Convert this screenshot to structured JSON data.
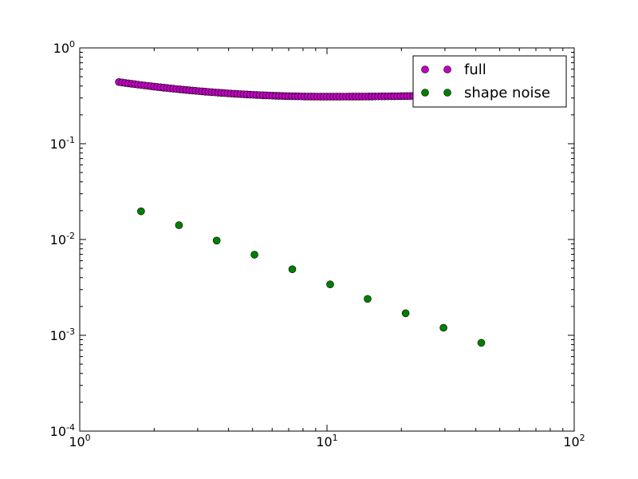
{
  "chart_data": {
    "type": "scatter",
    "title": "",
    "xlabel": "",
    "ylabel": "",
    "xscale": "log",
    "yscale": "log",
    "xlim": [
      1,
      100
    ],
    "ylim": [
      0.0001,
      1
    ],
    "x_ticks": [
      {
        "value": 1,
        "base": "10",
        "exp": "0"
      },
      {
        "value": 10,
        "base": "10",
        "exp": "1"
      },
      {
        "value": 100,
        "base": "10",
        "exp": "2"
      }
    ],
    "y_ticks": [
      {
        "value": 1,
        "base": "10",
        "exp": "0"
      },
      {
        "value": 0.1,
        "base": "10",
        "exp": "-1"
      },
      {
        "value": 0.01,
        "base": "10",
        "exp": "-2"
      },
      {
        "value": 0.001,
        "base": "10",
        "exp": "-3"
      },
      {
        "value": 0.0001,
        "base": "10",
        "exp": "-4"
      }
    ],
    "legend_position": "top-right",
    "grid": false,
    "series": [
      {
        "name": "full",
        "color": "#c000c0",
        "x_start": 1.44,
        "x_end": 50.0,
        "count": 120,
        "y_at_start": 0.44,
        "y_min": 0.31,
        "x_at_min": 10.0,
        "y_at_end": 0.33
      },
      {
        "name": "shape noise",
        "color": "#007f00",
        "points": [
          {
            "x": 1.77,
            "y": 0.0197
          },
          {
            "x": 2.52,
            "y": 0.0141
          },
          {
            "x": 3.58,
            "y": 0.00975
          },
          {
            "x": 5.09,
            "y": 0.00694
          },
          {
            "x": 7.24,
            "y": 0.00489
          },
          {
            "x": 10.3,
            "y": 0.0034
          },
          {
            "x": 14.6,
            "y": 0.0024
          },
          {
            "x": 20.8,
            "y": 0.0017
          },
          {
            "x": 29.6,
            "y": 0.0012
          },
          {
            "x": 42.1,
            "y": 0.000835
          }
        ]
      }
    ]
  }
}
